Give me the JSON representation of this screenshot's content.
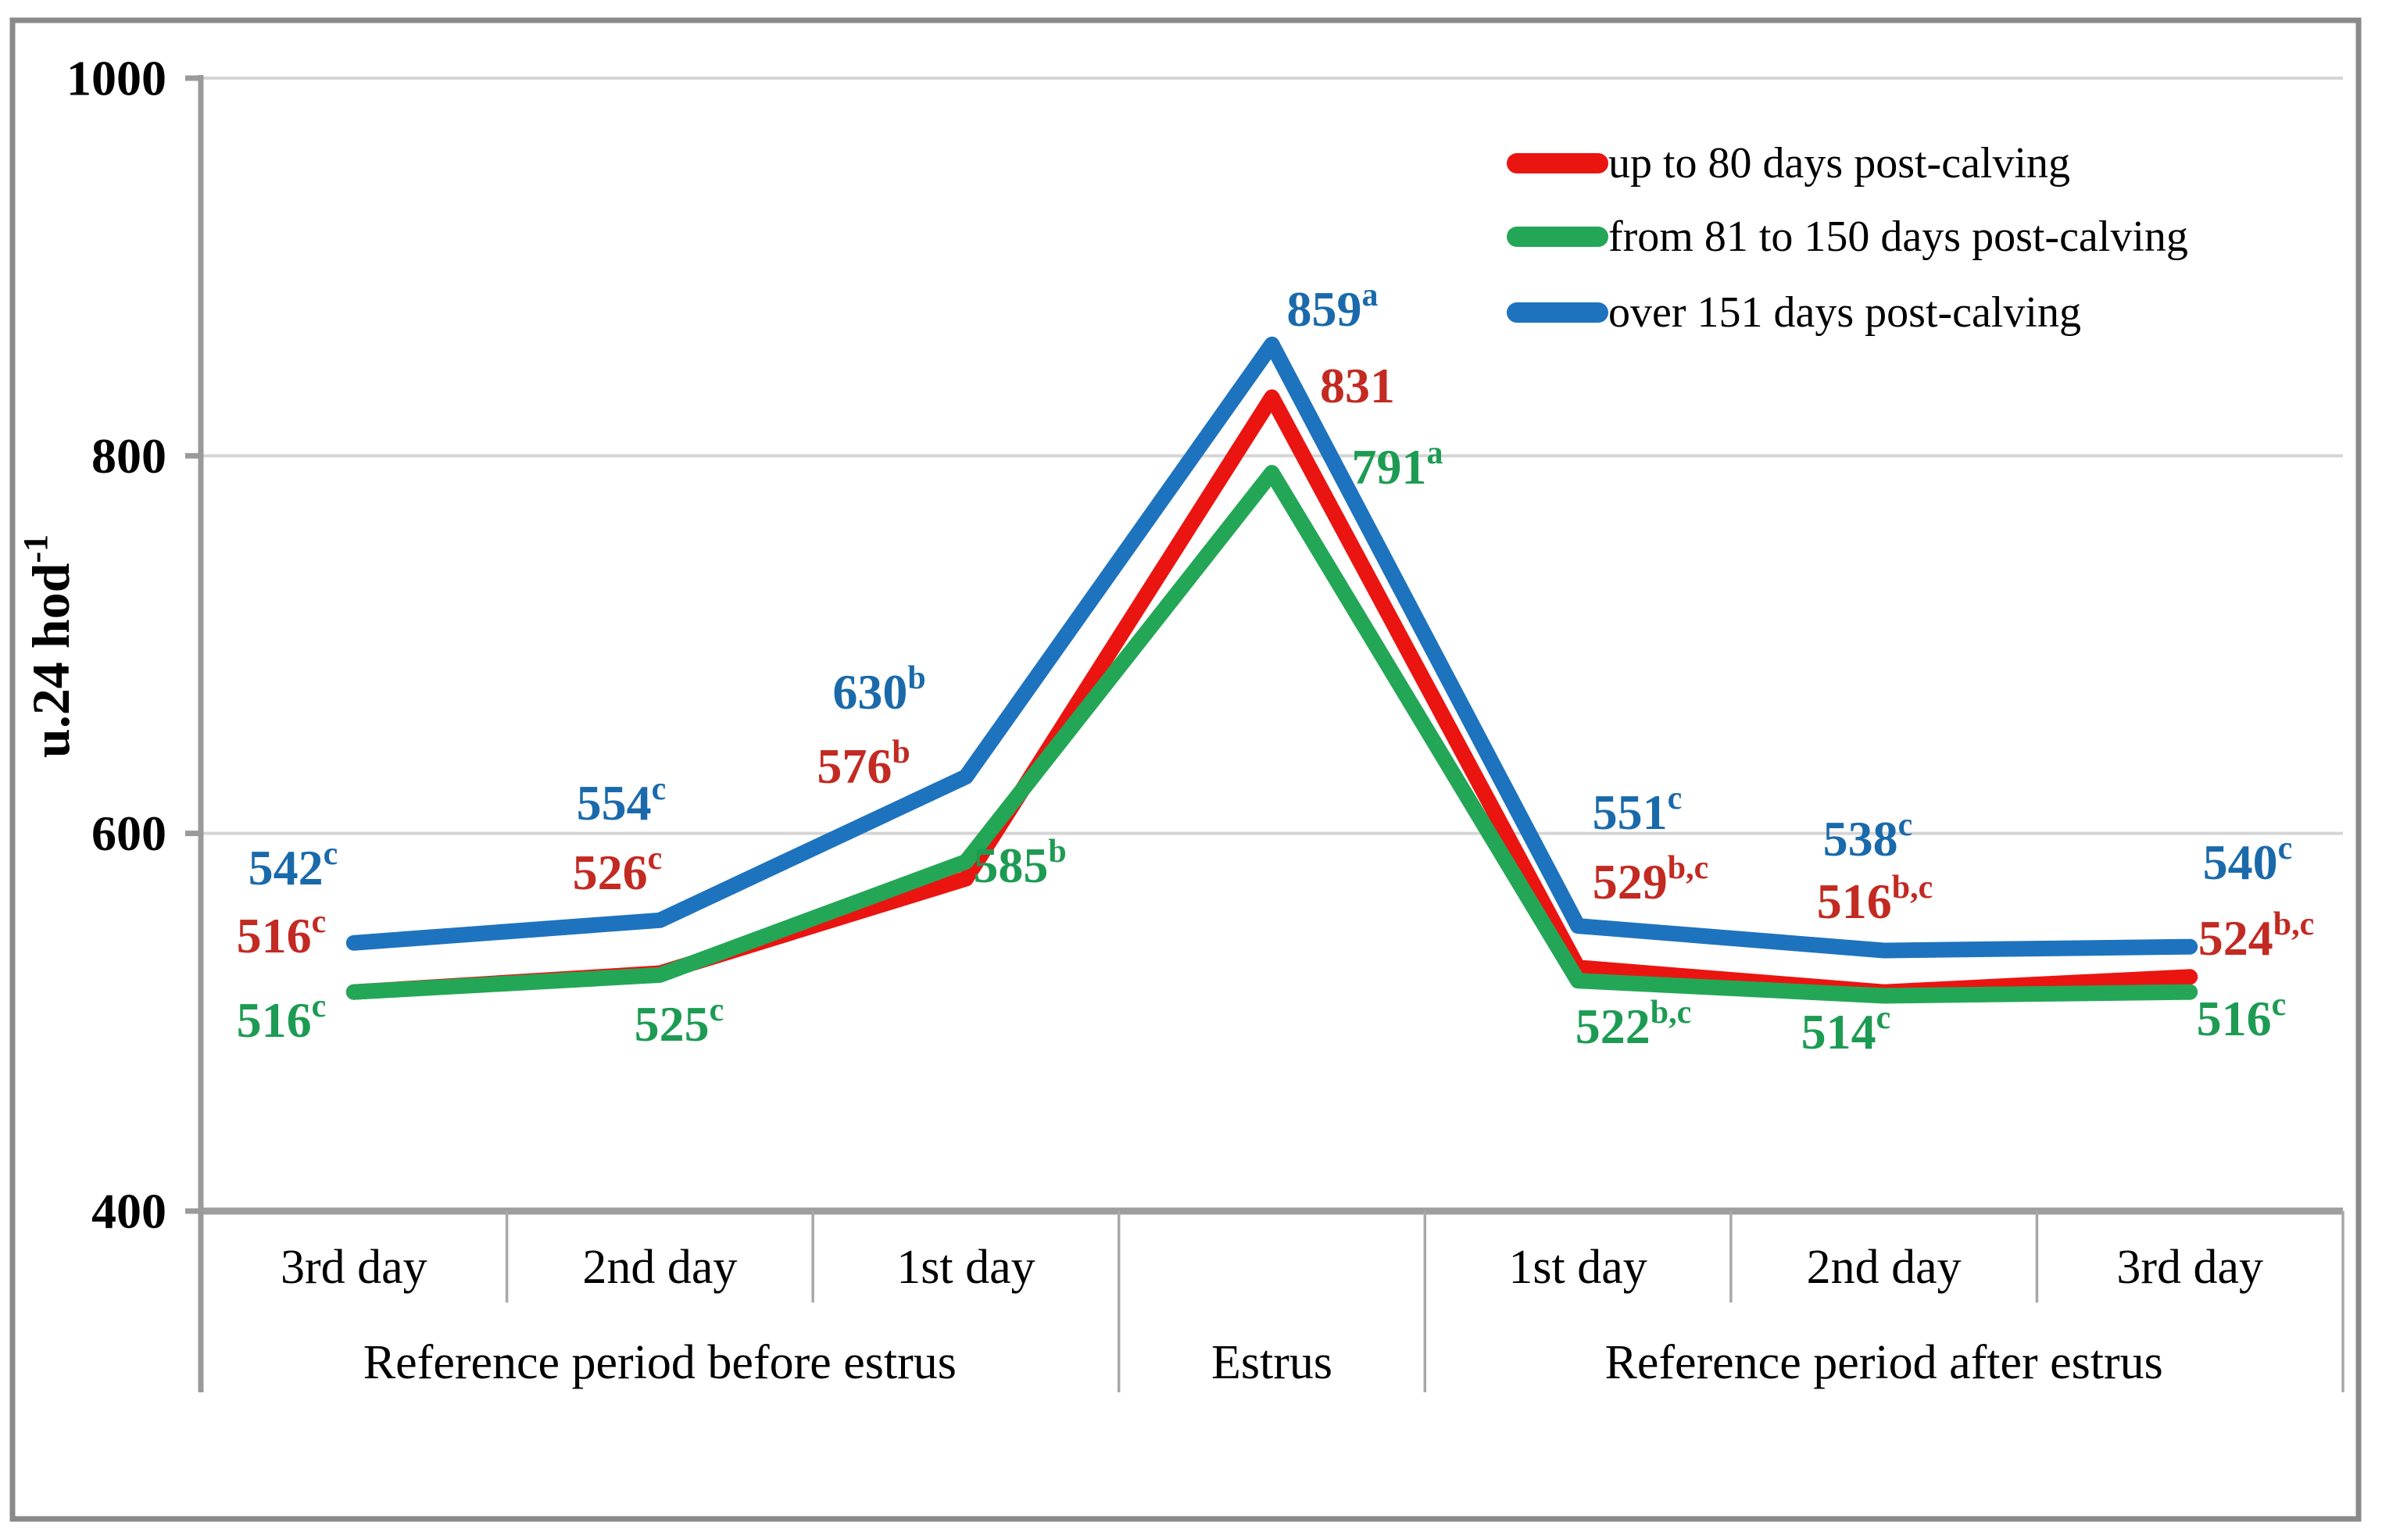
{
  "chart_data": {
    "type": "line",
    "title": "",
    "ylabel": "u.24 hod",
    "ylabel_superscript": "-1",
    "ylim": [
      400,
      1000
    ],
    "yticks": [
      400,
      600,
      800,
      1000
    ],
    "grid": true,
    "legend_position": "top-right",
    "categories": [
      "3rd day",
      "2nd day",
      "1st day",
      "",
      "1st day",
      "2nd day",
      "3rd day"
    ],
    "group_labels": [
      {
        "label": "Reference period before estrus",
        "span_start": 0,
        "span_end": 2
      },
      {
        "label": "Estrus",
        "span_start": 3,
        "span_end": 3
      },
      {
        "label": "Reference period after estrus",
        "span_start": 4,
        "span_end": 6
      }
    ],
    "series": [
      {
        "name": "up to 80 days post-calving",
        "color": "#ea1511",
        "label_color": "#c22a22",
        "values": [
          516,
          526,
          576,
          831,
          529,
          516,
          524
        ],
        "superscripts": [
          "c",
          "c",
          "b",
          "",
          "b,c",
          "b,c",
          "b,c"
        ]
      },
      {
        "name": "from 81 to 150 days post-calving",
        "color": "#23a756",
        "label_color": "#1d9b53",
        "values": [
          516,
          525,
          585,
          791,
          522,
          514,
          516
        ],
        "superscripts": [
          "c",
          "c",
          "b",
          "a",
          "b,c",
          "c",
          "c"
        ]
      },
      {
        "name": "over 151 days post-calving",
        "color": "#1e73be",
        "label_color": "#1a6aab",
        "values": [
          542,
          554,
          630,
          859,
          551,
          538,
          540
        ],
        "superscripts": [
          "c",
          "c",
          "b",
          "a",
          "c",
          "c",
          "c"
        ]
      }
    ]
  },
  "colors": {
    "axis": "#9a9a9a",
    "x_axis": "#9e9e9e",
    "gridline": "#d5d5d5",
    "separator": "#a8a8a8",
    "outer_border": "#8a8a8a",
    "text": "#000000"
  }
}
